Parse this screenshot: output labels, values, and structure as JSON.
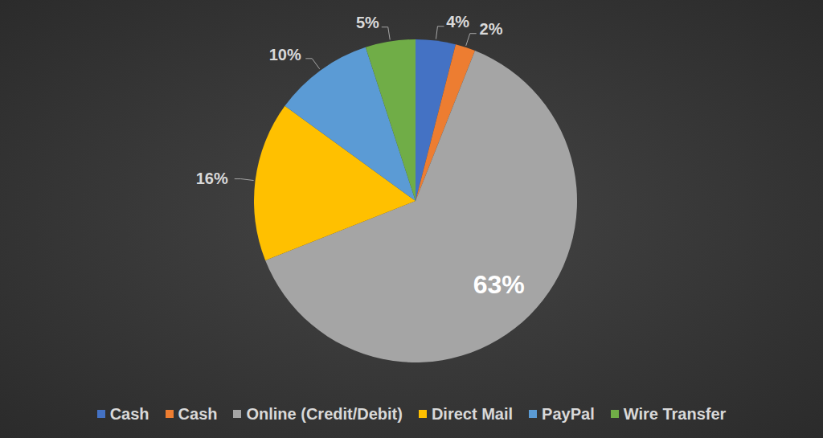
{
  "chart_data": {
    "type": "pie",
    "categories": [
      "Cash",
      "Cash",
      "Online (Credit/Debit)",
      "Direct Mail",
      "PayPal",
      "Wire Transfer"
    ],
    "values": [
      4,
      2,
      63,
      16,
      10,
      5
    ],
    "value_labels": [
      "4%",
      "2%",
      "63%",
      "16%",
      "10%",
      "5%"
    ],
    "colors": [
      "#4472c4",
      "#ed7d31",
      "#a5a5a5",
      "#ffc000",
      "#5b9bd5",
      "#70ad47"
    ],
    "data_labels": true,
    "legend": "bottom"
  }
}
